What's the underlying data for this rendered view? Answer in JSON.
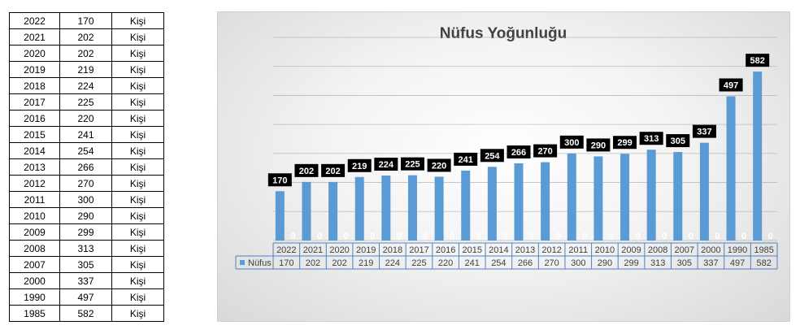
{
  "table": {
    "unit": "Kişi",
    "rows": [
      {
        "year": "2022",
        "value": "170"
      },
      {
        "year": "2021",
        "value": "202"
      },
      {
        "year": "2020",
        "value": "202"
      },
      {
        "year": "2019",
        "value": "219"
      },
      {
        "year": "2018",
        "value": "224"
      },
      {
        "year": "2017",
        "value": "225"
      },
      {
        "year": "2016",
        "value": "220"
      },
      {
        "year": "2015",
        "value": "241"
      },
      {
        "year": "2014",
        "value": "254"
      },
      {
        "year": "2013",
        "value": "266"
      },
      {
        "year": "2012",
        "value": "270"
      },
      {
        "year": "2011",
        "value": "300"
      },
      {
        "year": "2010",
        "value": "290"
      },
      {
        "year": "2009",
        "value": "299"
      },
      {
        "year": "2008",
        "value": "313"
      },
      {
        "year": "2007",
        "value": "305"
      },
      {
        "year": "2000",
        "value": "337"
      },
      {
        "year": "1990",
        "value": "497"
      },
      {
        "year": "1985",
        "value": "582"
      }
    ]
  },
  "chart_data": {
    "type": "bar",
    "title": "Nüfus Yoğunluğu",
    "categories": [
      "2022",
      "2021",
      "2020",
      "2019",
      "2018",
      "2017",
      "2016",
      "2015",
      "2014",
      "2013",
      "2012",
      "2011",
      "2010",
      "2009",
      "2008",
      "2007",
      "2000",
      "1990",
      "1985"
    ],
    "series": [
      {
        "name": "Nüfus",
        "values": [
          170,
          202,
          202,
          219,
          224,
          225,
          220,
          241,
          254,
          266,
          270,
          300,
          290,
          299,
          313,
          305,
          337,
          497,
          582
        ]
      },
      {
        "name": "",
        "values": [
          0,
          0,
          0,
          0,
          0,
          0,
          0,
          0,
          0,
          0,
          0,
          0,
          0,
          0,
          0,
          0,
          0,
          0,
          0
        ]
      }
    ],
    "ylim": [
      0,
      700
    ],
    "grid": true,
    "legend": "data-table",
    "colors": {
      "bar": "#5b9bd5",
      "label_bg": "#000000",
      "label_text": "#ffffff",
      "grid": "#a6a6a6",
      "table_border": "#4f81bd"
    }
  }
}
